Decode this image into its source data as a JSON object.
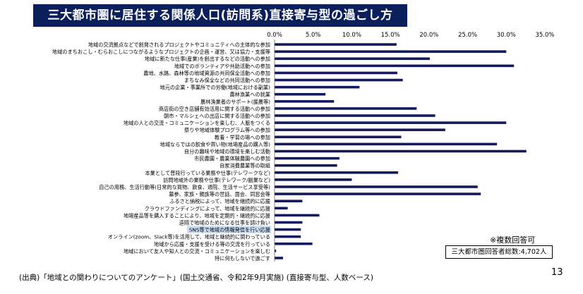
{
  "header": {
    "title": "三大都市圏に居住する関係人口(訪問系)直接寄与型の過ごし方"
  },
  "chart_data": {
    "type": "bar",
    "orientation": "horizontal",
    "title": "",
    "xlabel": "",
    "ylabel": "",
    "xlim": [
      0,
      35
    ],
    "x_ticks": [
      "0.0%",
      "5.0%",
      "10.0%",
      "15.0%",
      "20.0%",
      "25.0%",
      "30.0%",
      "35.0%"
    ],
    "x_tick_values": [
      0,
      5,
      10,
      15,
      20,
      25,
      30,
      35
    ],
    "grid": false,
    "bar_color": "#141a5c",
    "highlight_color": "#c9def2",
    "highlight_index": 26,
    "categories": [
      "地域の交流拠点などで創発されるプロジェクトやコミュニティへの主体的な参加",
      "地域のまちおこし・むらおこしにつながるようなプロジェクトの企画・運営、又は協力・支援等",
      "地域に新たな仕事(産業)を創出するなどの活動への参加",
      "地域でのボランティアや共助活動への参加",
      "農地、水路、森林等の地域資源の共同保全活動への参加",
      "まちなみ保全などの共同活動への参加",
      "地元の企業・事業所での労働(地域における副業)",
      "農林漁業への就業",
      "農林漁業者のサポート(援農等)",
      "商店街の空き店舗有効活用に関する活動への参加",
      "朝市・マルシェへの出店に関する活動への参加",
      "地域の人との交流・コミュニケーションを楽しむ、人脈をつくる",
      "祭りや地域体験プログラム等への参加",
      "教養・学習の場への参加",
      "地域ならではの飲食や買い物(地場産品の購入等)",
      "自分の趣味や地域の環境を楽しむ活動",
      "市民農園・農業体験農園への参加",
      "自家消費農業等の取組",
      "本業として普段行っている業務や仕事(テレワークなど)",
      "訪問地域外の業務や仕事(テレワーク/副業など)",
      "自己の用務、生活行動等(日常的な買物、飲食、通院、生活サービス享受等)",
      "墓参、家族・親族等の世話、面会、同窓会等",
      "ふるさと納税によって、地域を継続的に応援",
      "クラウドファンディングによって、地域を継続的に応援",
      "地場産品等を購入することにより、地域を定期的・継続的に応援",
      "遠隔で地域のためになる仕事を請け負い",
      "SNS等で地域の情報発信を行い応援",
      "オンライン(zoom、Slack等)を活用して、地域と継続的に関わっている",
      "地域から応援・支援を受ける等の交流を行っている",
      "地域において友人や知人との交流・コミュニケーションを楽しむ",
      "特に何もしないで過ごす"
    ],
    "values": [
      15.8,
      30.0,
      20.1,
      31.0,
      15.9,
      16.6,
      11.0,
      6.6,
      7.7,
      18.4,
      20.8,
      30.0,
      22.1,
      16.4,
      28.8,
      32.6,
      8.4,
      8.1,
      16.0,
      10.0,
      26.3,
      26.7,
      3.6,
      1.7,
      5.8,
      3.6,
      3.4,
      3.4,
      4.9,
      0.2,
      1.1
    ]
  },
  "annotations": {
    "multi_answer_note": "※複数回答可",
    "respondents_total": "三大都市圏回答者総数:4,702人"
  },
  "footer": {
    "source": "(出典)「地域との関わりについてのアンケート」(国土交通省、令和2年9月実施) (直接寄与型、人数ベース)",
    "page_number": "13"
  }
}
